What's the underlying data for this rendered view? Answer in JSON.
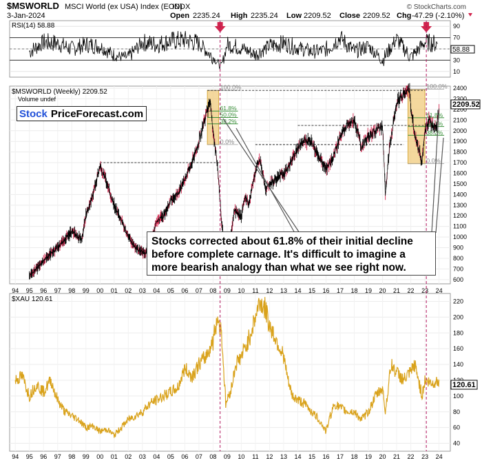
{
  "header": {
    "symbol": "$MSWORLD",
    "description": "MSCI World (ex USA) Index (EOD)",
    "exchange": "INDX",
    "date": "3-Jan-2024",
    "open_label": "Open",
    "open": "2235.24",
    "high_label": "High",
    "high": "2235.24",
    "low_label": "Low",
    "low": "2209.52",
    "close_label": "Close",
    "close": "2209.52",
    "chg_label": "Chg",
    "chg": "-47.29 (-2.10%)",
    "watermark": "© StockCharts.com"
  },
  "logo": {
    "part1": "Stock",
    "part2": "PriceForecast.com"
  },
  "annotation": {
    "lines": [
      "Stocks corrected about 61.8% of their initial decline",
      "before complete carnage. It's difficult to imagine a",
      "more bearish analogy than what we see right now."
    ]
  },
  "colors": {
    "accent_red": "#d1254d",
    "fib_box": "#f0c774",
    "gold_line": "#d9a21b",
    "fib_green": "#3a8f3a",
    "logo_blue": "#1f4fd8"
  },
  "chart_data": [
    {
      "type": "line",
      "panel": "rsi",
      "title": "RSI(14) 58.88",
      "y_ticks": [
        "90",
        "70",
        "50",
        "30",
        "10"
      ],
      "ylim": [
        0,
        100
      ],
      "reference_lines": [
        70,
        30
      ],
      "last_value_label": "58.88",
      "series": [
        {
          "x": [
            1995,
            1996,
            1997,
            1998,
            1999,
            2000,
            2001,
            2002,
            2003,
            2004,
            2005,
            2006,
            2007,
            2008,
            2008.6,
            2009,
            2010,
            2011,
            2012,
            2013,
            2014,
            2015,
            2016,
            2017,
            2018,
            2019,
            2020,
            2021,
            2022,
            2023,
            2023.9
          ],
          "values": [
            45,
            62,
            60,
            50,
            58,
            55,
            38,
            35,
            62,
            58,
            64,
            66,
            60,
            35,
            18,
            58,
            52,
            40,
            55,
            60,
            52,
            45,
            48,
            70,
            45,
            55,
            30,
            68,
            35,
            62,
            58.88
          ]
        }
      ],
      "markers": [
        {
          "x": 2008.5,
          "shape": "down-arrow"
        },
        {
          "x": 2023.1,
          "shape": "down-arrow"
        }
      ]
    },
    {
      "type": "line",
      "panel": "main",
      "title": "$MSWORLD (Weekly) 2209.52",
      "subtitle": "Volume undef",
      "ylim": [
        560,
        2420
      ],
      "y_ticks": [
        "2400",
        "2300",
        "2200",
        "2100",
        "2000",
        "1900",
        "1800",
        "1700",
        "1600",
        "1500",
        "1400",
        "1300",
        "1200",
        "1100",
        "1000",
        "900",
        "800",
        "700",
        "600"
      ],
      "x_ticks": [
        "94",
        "95",
        "96",
        "97",
        "98",
        "99",
        "00",
        "01",
        "02",
        "03",
        "04",
        "05",
        "06",
        "07",
        "08",
        "09",
        "10",
        "11",
        "12",
        "13",
        "14",
        "15",
        "16",
        "17",
        "18",
        "19",
        "20",
        "21",
        "22",
        "23",
        "24"
      ],
      "last_value_label": "2209.52",
      "series": [
        {
          "x": [
            1995.0,
            1995.5,
            1996,
            1996.5,
            1997,
            1997.5,
            1998,
            1998.7,
            1999,
            1999.5,
            2000.0,
            2000.5,
            2001,
            2001.7,
            2002,
            2002.5,
            2003.2,
            2003.8,
            2004,
            2004.5,
            2005,
            2005.5,
            2006,
            2006.5,
            2007,
            2007.8,
            2008.0,
            2008.3,
            2008.6,
            2008.9,
            2009.2,
            2009.5,
            2010,
            2010.3,
            2010.5,
            2011,
            2011.3,
            2011.7,
            2012,
            2012.5,
            2013,
            2013.5,
            2014,
            2014.5,
            2015,
            2015.5,
            2016,
            2016.5,
            2017,
            2017.5,
            2018,
            2018.5,
            2019,
            2019.5,
            2020,
            2020.2,
            2020.5,
            2021,
            2021.5,
            2021.9,
            2022,
            2022.3,
            2022.8,
            2023,
            2023.3,
            2023.6,
            2023.8,
            2024.0
          ],
          "values": [
            640,
            700,
            780,
            840,
            900,
            980,
            1050,
            980,
            1200,
            1400,
            1680,
            1500,
            1300,
            1100,
            1000,
            900,
            850,
            1050,
            1150,
            1200,
            1350,
            1400,
            1550,
            1700,
            1900,
            2300,
            2000,
            1700,
            1150,
            800,
            950,
            1250,
            1200,
            1400,
            1300,
            1600,
            1750,
            1450,
            1500,
            1550,
            1600,
            1700,
            1850,
            1900,
            1900,
            1750,
            1650,
            1750,
            1950,
            2050,
            2100,
            1850,
            1950,
            2000,
            2050,
            1400,
            1850,
            2250,
            2350,
            2400,
            2200,
            1950,
            1700,
            2000,
            2100,
            2050,
            2000,
            2209.52
          ]
        }
      ],
      "fib_boxes": [
        {
          "label_top": "100.0%",
          "label_bottom": "0.0%",
          "levels": [
            "61.8%",
            "50.0%",
            "38.2%"
          ],
          "year_start": 2007.6,
          "year_end": 2008.4
        },
        {
          "label_top": "100.0%",
          "label_bottom": "0.0%",
          "levels": [
            "61.8%",
            "50.0%",
            "38.2%"
          ],
          "year_start": 2021.8,
          "year_end": 2023.0
        }
      ],
      "dashed_levels": [
        2380,
        2050,
        1870,
        1700
      ]
    },
    {
      "type": "line",
      "panel": "xau",
      "title": "$XAU 120.61",
      "ylim": [
        30,
        230
      ],
      "y_ticks": [
        "220",
        "200",
        "180",
        "160",
        "140",
        "120",
        "100",
        "80",
        "60",
        "40"
      ],
      "x_ticks": [
        "94",
        "95",
        "96",
        "97",
        "98",
        "99",
        "00",
        "01",
        "02",
        "03",
        "04",
        "05",
        "06",
        "07",
        "08",
        "09",
        "10",
        "11",
        "12",
        "13",
        "14",
        "15",
        "16",
        "17",
        "18",
        "19",
        "20",
        "21",
        "22",
        "23",
        "24"
      ],
      "last_value_label": "120.61",
      "series": [
        {
          "x": [
            1994.0,
            1994.5,
            1995,
            1995.5,
            1996,
            1996.5,
            1997,
            1997.5,
            1998,
            1998.5,
            1999,
            1999.5,
            2000,
            2000.5,
            2001,
            2001.5,
            2002,
            2002.5,
            2003,
            2003.5,
            2004,
            2004.5,
            2005,
            2005.5,
            2006,
            2006.5,
            2007,
            2007.5,
            2008,
            2008.3,
            2008.6,
            2008.9,
            2009.3,
            2009.6,
            2010,
            2010.5,
            2011,
            2011.3,
            2011.7,
            2012,
            2012.5,
            2013,
            2013.3,
            2013.6,
            2014,
            2014.5,
            2015,
            2015.5,
            2016,
            2016.3,
            2016.6,
            2017,
            2017.5,
            2018,
            2018.5,
            2019,
            2019.5,
            2020,
            2020.2,
            2020.6,
            2021,
            2021.5,
            2022,
            2022.3,
            2022.8,
            2023,
            2023.5,
            2024.0
          ],
          "values": [
            120,
            125,
            100,
            115,
            105,
            120,
            95,
            80,
            75,
            70,
            60,
            62,
            55,
            58,
            50,
            60,
            70,
            75,
            80,
            90,
            95,
            100,
            105,
            110,
            135,
            125,
            140,
            150,
            170,
            200,
            180,
            90,
            110,
            140,
            150,
            170,
            200,
            220,
            210,
            190,
            170,
            150,
            120,
            100,
            95,
            90,
            80,
            70,
            55,
            75,
            90,
            85,
            80,
            80,
            70,
            80,
            100,
            110,
            80,
            140,
            130,
            120,
            130,
            140,
            100,
            120,
            115,
            120.61
          ]
        }
      ]
    }
  ]
}
